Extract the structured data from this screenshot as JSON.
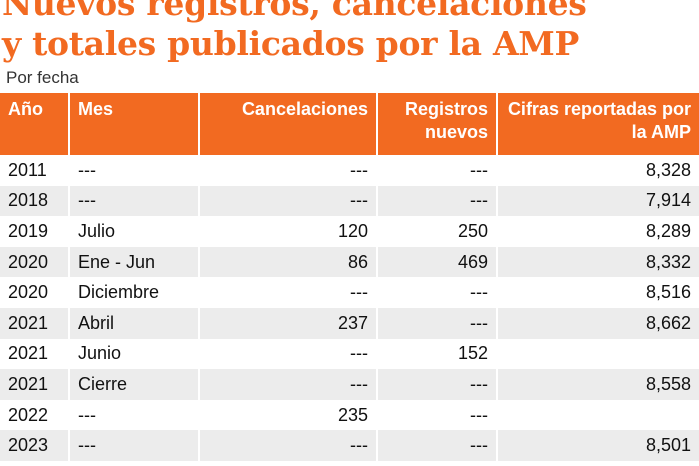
{
  "header": {
    "title_lines": [
      "Nuevos registros, cancelaciones",
      "y totales publicados por la AMP"
    ],
    "subtitle": "Por fecha"
  },
  "table": {
    "columns": [
      "Año",
      "Mes",
      "Cancelaciones",
      "Registros nuevos",
      "Cifras reportadas por la AMP"
    ],
    "rows": [
      [
        "2011",
        "---",
        "---",
        "---",
        "8,328"
      ],
      [
        "2018",
        "---",
        "---",
        "---",
        "7,914"
      ],
      [
        "2019",
        "Julio",
        "120",
        "250",
        "8,289"
      ],
      [
        "2020",
        "Ene - Jun",
        "86",
        "469",
        "8,332"
      ],
      [
        "2020",
        "Diciembre",
        "---",
        "---",
        "8,516"
      ],
      [
        "2021",
        "Abril",
        "237",
        "---",
        "8,662"
      ],
      [
        "2021",
        "Junio",
        "---",
        "152",
        null
      ],
      [
        "2021",
        "Cierre",
        "---",
        "---",
        "8,558"
      ],
      [
        "2022",
        "---",
        "235",
        "---",
        null
      ],
      [
        "2023",
        "---",
        "---",
        "---",
        "8,501"
      ]
    ]
  }
}
